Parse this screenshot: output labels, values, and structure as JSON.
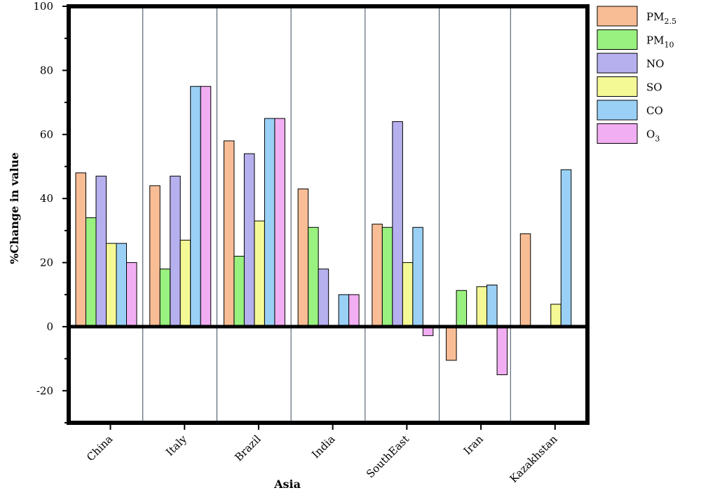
{
  "chart_data": {
    "type": "bar",
    "xlabel": "Asia",
    "ylabel": "%Change in value",
    "ylim": [
      -30,
      100
    ],
    "yticks": [
      100,
      80,
      60,
      40,
      20,
      0,
      -20
    ],
    "categories": [
      "China",
      "Italy",
      "Brazil",
      "India",
      "SouthEast",
      "Iran",
      "Kazakhstan"
    ],
    "legend_position": "right",
    "series": [
      {
        "name": "PM2.5",
        "label_main": "PM",
        "label_sub": "2.5",
        "color": "#F9BD95",
        "values": [
          48,
          44,
          58,
          43,
          32,
          -10.5,
          29
        ]
      },
      {
        "name": "PM10",
        "label_main": "PM",
        "label_sub": "10",
        "color": "#99F17F",
        "values": [
          34,
          18,
          22,
          31,
          31,
          11.3,
          null
        ]
      },
      {
        "name": "NO",
        "label_main": "NO",
        "label_sub": "",
        "color": "#B7B0EF",
        "values": [
          47,
          47,
          54,
          18,
          64,
          null,
          null
        ]
      },
      {
        "name": "SO",
        "label_main": "SO",
        "label_sub": "",
        "color": "#F4F996",
        "values": [
          26,
          27,
          33,
          null,
          20,
          12.5,
          7
        ]
      },
      {
        "name": "CO",
        "label_main": "CO",
        "label_sub": "",
        "color": "#9AD0F6",
        "values": [
          26,
          75,
          65,
          10,
          31,
          13,
          49
        ]
      },
      {
        "name": "O3",
        "label_main": "O",
        "label_sub": "3",
        "color": "#F2AEF2",
        "values": [
          20,
          75,
          65,
          10,
          -2.8,
          -15,
          null
        ]
      }
    ]
  }
}
